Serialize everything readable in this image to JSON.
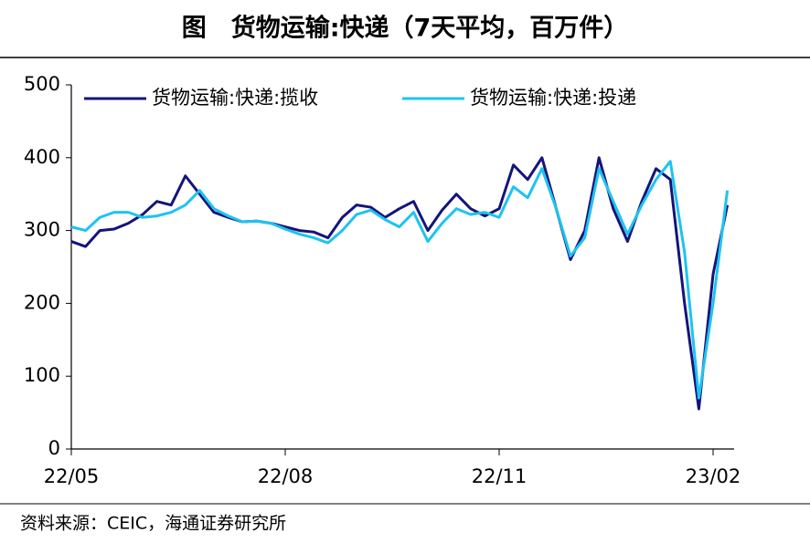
{
  "chart_data": {
    "type": "line",
    "title": "图　货物运输:快递（7天平均，百万件）",
    "source": "资料来源：CEIC，海通证券研究所",
    "categories": [
      "22/05",
      null,
      null,
      null,
      null,
      null,
      null,
      null,
      null,
      null,
      null,
      null,
      null,
      null,
      null,
      "22/08",
      null,
      null,
      null,
      null,
      null,
      null,
      null,
      null,
      null,
      null,
      null,
      null,
      null,
      null,
      "22/11",
      null,
      null,
      null,
      null,
      null,
      null,
      null,
      null,
      null,
      null,
      null,
      null,
      null,
      null,
      "23/02",
      null
    ],
    "series": [
      {
        "name": "货物运输:快递:揽收",
        "color": "#14147a",
        "values": [
          285,
          278,
          300,
          302,
          310,
          322,
          340,
          335,
          375,
          350,
          325,
          318,
          312,
          313,
          310,
          305,
          300,
          298,
          290,
          318,
          335,
          332,
          318,
          330,
          340,
          300,
          328,
          350,
          330,
          320,
          330,
          390,
          370,
          400,
          330,
          260,
          300,
          400,
          330,
          285,
          340,
          385,
          370,
          200,
          55,
          240,
          335
        ]
      },
      {
        "name": "货物运输:快递:投递",
        "color": "#1ec3f0",
        "values": [
          305,
          300,
          318,
          325,
          325,
          318,
          320,
          325,
          335,
          355,
          330,
          320,
          312,
          313,
          310,
          302,
          295,
          290,
          283,
          300,
          322,
          328,
          315,
          305,
          325,
          285,
          310,
          330,
          322,
          325,
          318,
          360,
          345,
          385,
          330,
          265,
          290,
          385,
          340,
          295,
          335,
          370,
          395,
          270,
          70,
          200,
          355
        ]
      }
    ],
    "ylim": [
      0,
      500
    ],
    "yticks": [
      0,
      100,
      200,
      300,
      400,
      500
    ],
    "legend": "top-left",
    "grid": false
  }
}
